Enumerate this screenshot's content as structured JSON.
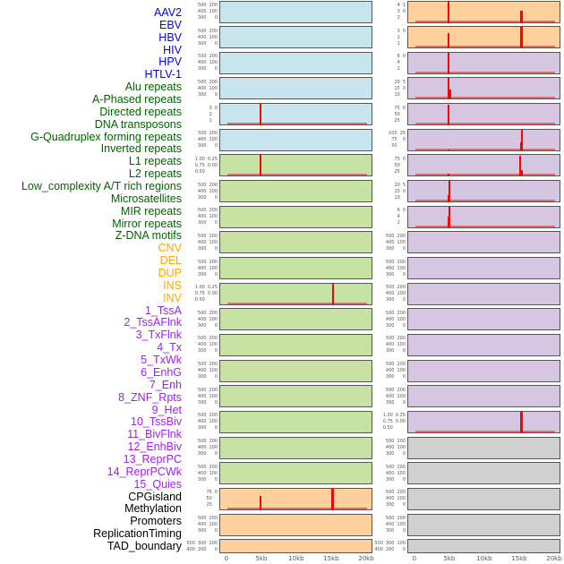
{
  "chart_data": {
    "type": "bar",
    "xlabel": "",
    "ylabel": "",
    "xlim_kb": [
      -1,
      20.9
    ],
    "x_ticks": [
      "0",
      "5kb",
      "10kb",
      "15kb",
      "20kb"
    ],
    "x_tick_values": [
      0,
      5,
      10,
      15,
      20
    ],
    "colors": {
      "blue": "#c8e4ec",
      "green": "#c8e2a4",
      "orange": "#fed09e",
      "purple": "#d6c6e2",
      "gray": "#d0d0d0",
      "spike": "#ff0000",
      "label_blue": "#0000ff",
      "label_green": "#006400",
      "label_orange": "#ffa500",
      "label_purple": "#a020f0",
      "label_black": "#000000"
    },
    "labels": [
      {
        "t": "AAV2",
        "c": "label_blue"
      },
      {
        "t": "EBV",
        "c": "label_blue"
      },
      {
        "t": "HBV",
        "c": "label_blue"
      },
      {
        "t": "HIV",
        "c": "label_blue"
      },
      {
        "t": "HPV",
        "c": "label_blue"
      },
      {
        "t": "HTLV-1",
        "c": "label_blue"
      },
      {
        "t": "Alu repeats",
        "c": "label_green"
      },
      {
        "t": "A-Phased repeats",
        "c": "label_green"
      },
      {
        "t": "Directed repeats",
        "c": "label_green"
      },
      {
        "t": "DNA transposons",
        "c": "label_green"
      },
      {
        "t": "G-Quadruplex forming repeats",
        "c": "label_green"
      },
      {
        "t": "Inverted repeats",
        "c": "label_green"
      },
      {
        "t": "L1 repeats",
        "c": "label_green"
      },
      {
        "t": "L2 repeats",
        "c": "label_green"
      },
      {
        "t": "Low_complexity A/T rich regions",
        "c": "label_green"
      },
      {
        "t": "Microsatellites",
        "c": "label_green"
      },
      {
        "t": "MIR repeats",
        "c": "label_green"
      },
      {
        "t": "Mirror repeats",
        "c": "label_green"
      },
      {
        "t": "Z-DNA motifs",
        "c": "label_green"
      },
      {
        "t": "CNV",
        "c": "label_orange"
      },
      {
        "t": "DEL",
        "c": "label_orange"
      },
      {
        "t": "DUP",
        "c": "label_orange"
      },
      {
        "t": "INS",
        "c": "label_orange"
      },
      {
        "t": "INV",
        "c": "label_orange"
      },
      {
        "t": "1_TssA",
        "c": "label_purple"
      },
      {
        "t": "2_TssAFlnk",
        "c": "label_purple"
      },
      {
        "t": "3_TxFlnk",
        "c": "label_purple"
      },
      {
        "t": "4_Tx",
        "c": "label_purple"
      },
      {
        "t": "5_TxWk",
        "c": "label_purple"
      },
      {
        "t": "6_EnhG",
        "c": "label_purple"
      },
      {
        "t": "7_Enh",
        "c": "label_purple"
      },
      {
        "t": "8_ZNF_Rpts",
        "c": "label_purple"
      },
      {
        "t": "9_Het",
        "c": "label_purple"
      },
      {
        "t": "10_TssBiv",
        "c": "label_purple"
      },
      {
        "t": "11_BivFlnk",
        "c": "label_purple"
      },
      {
        "t": "12_EnhBiv",
        "c": "label_purple"
      },
      {
        "t": "13_ReprPC",
        "c": "label_purple"
      },
      {
        "t": "14_ReprPCWk",
        "c": "label_purple"
      },
      {
        "t": "15_Quies",
        "c": "label_purple"
      },
      {
        "t": "CPGisland",
        "c": "label_black"
      },
      {
        "t": "Methylation",
        "c": "label_black"
      },
      {
        "t": "Promoters",
        "c": "label_black"
      },
      {
        "t": "ReplicationTiming",
        "c": "label_black"
      },
      {
        "t": "TAD_boundary",
        "c": "label_black"
      }
    ],
    "columns": [
      {
        "panels": [
          {
            "bg": "blue"
          },
          {
            "bg": "blue"
          },
          {
            "bg": "blue"
          },
          {
            "bg": "blue"
          },
          {
            "bg": "blue",
            "ticks": [
              "0",
              "1",
              "2",
              "3"
            ],
            "ymax": 3.1,
            "spikes": [
              [
                4.8,
                3.1
              ]
            ]
          },
          {
            "bg": "blue"
          },
          {
            "bg": "green",
            "ticks": [
              "0.00",
              "0.25",
              "0.50",
              "0.75",
              "1.00"
            ],
            "ymax": 1.0,
            "spikes": [
              [
                4.7,
                1.0
              ]
            ]
          },
          {
            "bg": "green"
          },
          {
            "bg": "green"
          },
          {
            "bg": "green"
          },
          {
            "bg": "green"
          },
          {
            "bg": "green",
            "ticks": [
              "0.00",
              "0.25",
              "0.50",
              "0.75",
              "1.00"
            ],
            "ymax": 1.0,
            "spikes": [
              [
                15.1,
                1.0
              ]
            ]
          },
          {
            "bg": "green"
          },
          {
            "bg": "green"
          },
          {
            "bg": "green"
          },
          {
            "bg": "green"
          },
          {
            "bg": "green"
          },
          {
            "bg": "green"
          },
          {
            "bg": "green"
          },
          {
            "bg": "orange",
            "ticks": [
              "0",
              "25",
              "50",
              "75"
            ],
            "ymax": 90,
            "spikes": [
              [
                4.8,
                60
              ],
              [
                15.0,
                90
              ],
              [
                15.2,
                90
              ]
            ]
          },
          {
            "bg": "orange"
          },
          {
            "bg": "orange"
          }
        ]
      },
      {
        "panels": [
          {
            "bg": "orange",
            "ticks": [
              "0",
              "1",
              "2",
              "3",
              "4"
            ],
            "ymax": 4.2,
            "spikes": [
              [
                4.8,
                4.2
              ],
              [
                15.1,
                2.2
              ],
              [
                15.3,
                2.3
              ]
            ]
          },
          {
            "bg": "orange",
            "ticks": [
              "0",
              "1",
              "2",
              "3"
            ],
            "ymax": 3.1,
            "spikes": [
              [
                4.8,
                2.2
              ],
              [
                15.1,
                3.1
              ],
              [
                15.3,
                3.1
              ]
            ]
          },
          {
            "bg": "purple",
            "ticks": [
              "0",
              "2",
              "4",
              "6"
            ],
            "ymax": 7.3,
            "spikes": [
              [
                4.8,
                7.3
              ]
            ]
          },
          {
            "bg": "purple",
            "ticks": [
              "0",
              "5",
              "10",
              "15",
              "20"
            ],
            "ymax": 21,
            "spikes": [
              [
                4.8,
                21
              ],
              [
                5.0,
                10
              ]
            ]
          },
          {
            "bg": "purple",
            "ticks": [
              "0",
              "25",
              "50",
              "75"
            ],
            "ymax": 88,
            "spikes": [
              [
                4.8,
                85
              ]
            ]
          },
          {
            "bg": "purple",
            "ticks": [
              "0",
              "25",
              "50",
              "75",
              "100"
            ],
            "ymax": 110,
            "spikes": [
              [
                4.8,
                5
              ],
              [
                15.1,
                40
              ],
              [
                15.3,
                110
              ]
            ]
          },
          {
            "bg": "purple",
            "ticks": [
              "0",
              "25",
              "50",
              "75"
            ],
            "ymax": 88,
            "spikes": [
              [
                4.8,
                8
              ],
              [
                15.0,
                85
              ],
              [
                15.3,
                25
              ]
            ]
          },
          {
            "bg": "purple",
            "ticks": [
              "0",
              "5",
              "10",
              "15",
              "20"
            ],
            "ymax": 23,
            "spikes": [
              [
                4.7,
                7
              ],
              [
                4.9,
                23
              ]
            ]
          },
          {
            "bg": "purple",
            "ticks": [
              "0",
              "2",
              "4",
              "6"
            ],
            "ymax": 8,
            "spikes": [
              [
                4.7,
                4
              ],
              [
                4.9,
                8
              ]
            ]
          },
          {
            "bg": "purple"
          },
          {
            "bg": "purple"
          },
          {
            "bg": "purple"
          },
          {
            "bg": "purple"
          },
          {
            "bg": "purple"
          },
          {
            "bg": "purple"
          },
          {
            "bg": "purple"
          },
          {
            "bg": "purple",
            "ticks": [
              "0.00",
              "0.25",
              "0.50",
              "0.75",
              "1.00"
            ],
            "ymax": 1.0,
            "spikes": [
              [
                15.1,
                1.0
              ],
              [
                15.3,
                1.0
              ]
            ]
          },
          {
            "bg": "gray"
          },
          {
            "bg": "gray"
          },
          {
            "bg": "gray"
          },
          {
            "bg": "gray"
          },
          {
            "bg": "gray"
          }
        ]
      }
    ],
    "default_ticks": [
      "0",
      "100",
      "200",
      "300",
      "400",
      "500"
    ],
    "default_ymax": 520
  }
}
